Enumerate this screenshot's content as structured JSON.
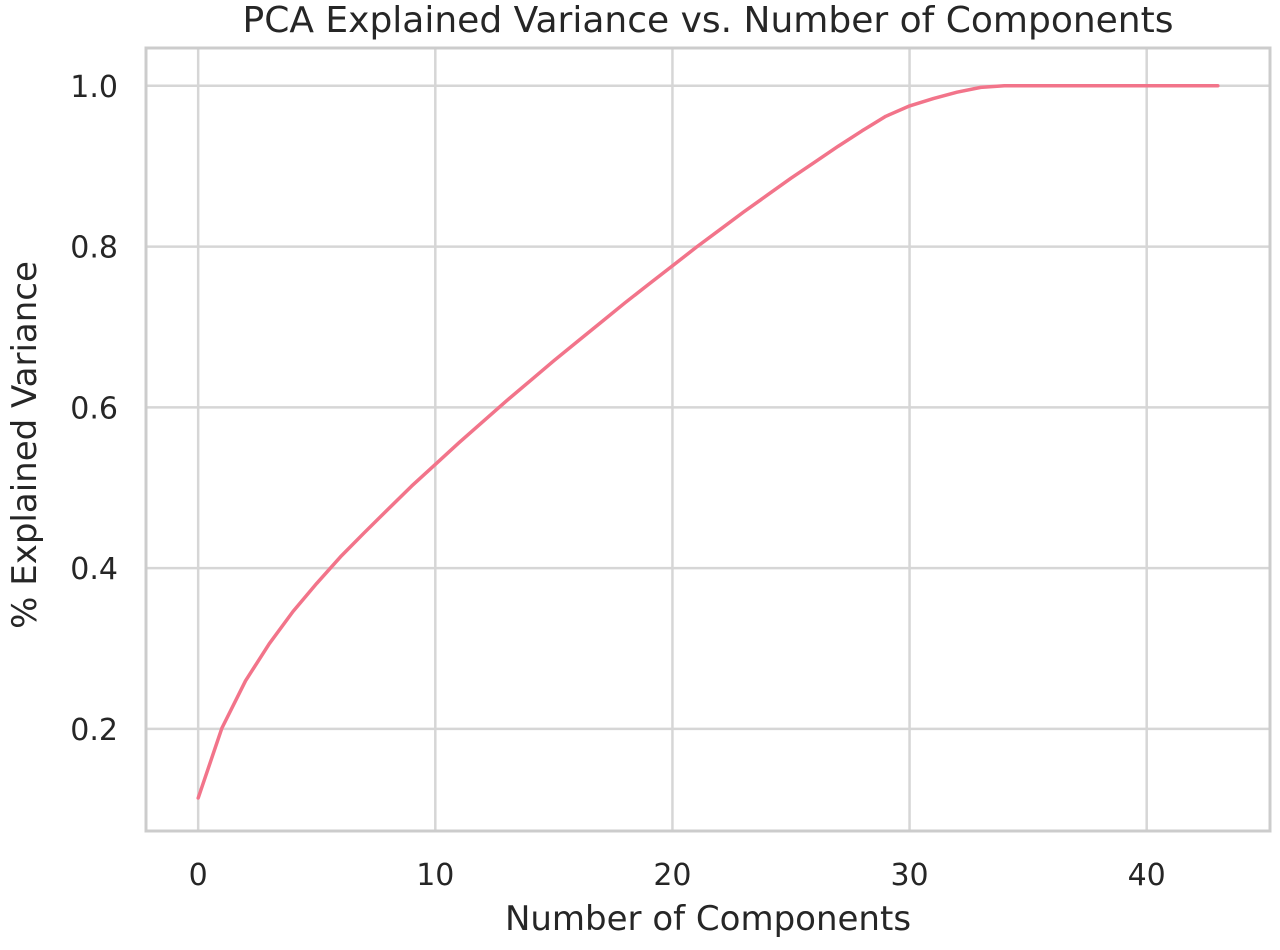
{
  "chart_data": {
    "type": "line",
    "title": "PCA Explained Variance vs. Number of Components",
    "xlabel": "Number of Components",
    "ylabel": "% Explained Variance",
    "xlim": [
      -2.2,
      45.2
    ],
    "ylim": [
      0.073,
      1.047
    ],
    "xticks": [
      0,
      10,
      20,
      30,
      40
    ],
    "xtick_labels": [
      "0",
      "10",
      "20",
      "30",
      "40"
    ],
    "yticks": [
      0.2,
      0.4,
      0.6,
      0.8,
      1.0
    ],
    "ytick_labels": [
      "0.2",
      "0.4",
      "0.6",
      "0.8",
      "1.0"
    ],
    "grid": true,
    "legend": false,
    "series": [
      {
        "color": "#f2748a",
        "x": [
          0,
          1,
          2,
          3,
          4,
          5,
          6,
          7,
          8,
          9,
          10,
          11,
          12,
          13,
          14,
          15,
          16,
          17,
          18,
          19,
          20,
          21,
          22,
          23,
          24,
          25,
          26,
          27,
          28,
          29,
          30,
          31,
          32,
          33,
          34,
          35,
          36,
          37,
          38,
          39,
          40,
          41,
          42,
          43
        ],
        "y": [
          0.114,
          0.201,
          0.26,
          0.306,
          0.346,
          0.381,
          0.414,
          0.444,
          0.473,
          0.502,
          0.529,
          0.556,
          0.582,
          0.608,
          0.633,
          0.658,
          0.682,
          0.706,
          0.73,
          0.753,
          0.776,
          0.799,
          0.821,
          0.843,
          0.864,
          0.885,
          0.905,
          0.925,
          0.944,
          0.962,
          0.975,
          0.984,
          0.992,
          0.998,
          1.0,
          1.0,
          1.0,
          1.0,
          1.0,
          1.0,
          1.0,
          1.0,
          1.0,
          1.0
        ]
      }
    ]
  }
}
